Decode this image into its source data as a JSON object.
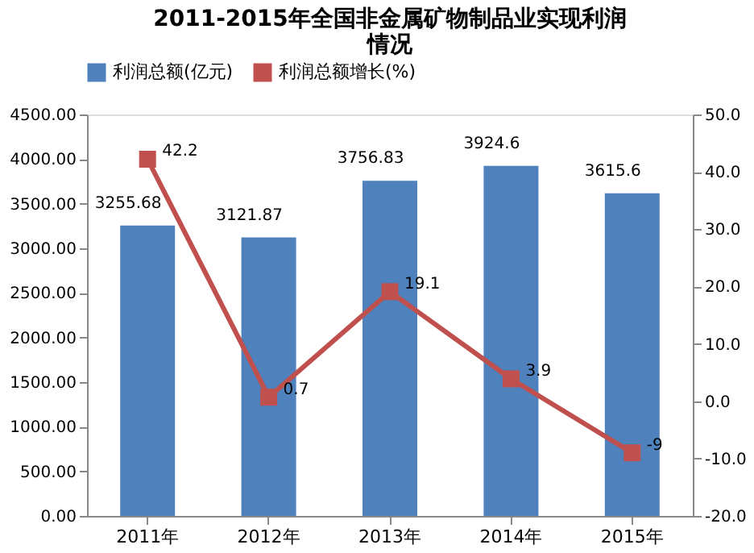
{
  "chart_data": {
    "type": "bar",
    "title": [
      "2011-2015年全国非金属矿物制品业实现利润",
      "情况"
    ],
    "categories": [
      "2011年",
      "2012年",
      "2013年",
      "2014年",
      "2015年"
    ],
    "series": [
      {
        "name": "利润总额(亿元)",
        "color": "#4f81bd",
        "values": [
          3255.68,
          3121.87,
          3756.83,
          3924.6,
          3615.6
        ],
        "value_labels": [
          "3255.68",
          "3121.87",
          "3756.83",
          "3924.6",
          "3615.6"
        ]
      },
      {
        "name": "利润总额增长(%)",
        "type": "line",
        "axis": "y2",
        "color": "#c0504d",
        "marker": "square",
        "values": [
          42.2,
          0.7,
          19.1,
          3.9,
          -9
        ],
        "value_labels": [
          "42.2",
          "0.7",
          "19.1",
          "3.9",
          "-9"
        ]
      }
    ],
    "ylim": [
      0,
      4500
    ],
    "yticks": [
      {
        "value": 0,
        "label": "0.00"
      },
      {
        "value": 500,
        "label": "500.00"
      },
      {
        "value": 1000,
        "label": "1000.00"
      },
      {
        "value": 1500,
        "label": "1500.00"
      },
      {
        "value": 2000,
        "label": "2000.00"
      },
      {
        "value": 2500,
        "label": "2500.00"
      },
      {
        "value": 3000,
        "label": "3000.00"
      },
      {
        "value": 3500,
        "label": "3500.00"
      },
      {
        "value": 4000,
        "label": "4000.00"
      },
      {
        "value": 4500,
        "label": "4500.00"
      }
    ],
    "y2lim": [
      -20,
      50
    ],
    "y2ticks": [
      {
        "value": -20,
        "label": "-20.0"
      },
      {
        "value": -10,
        "label": "-10.0"
      },
      {
        "value": 0,
        "label": "0.0"
      },
      {
        "value": 10,
        "label": "10.0"
      },
      {
        "value": 20,
        "label": "20.0"
      },
      {
        "value": 30,
        "label": "30.0"
      },
      {
        "value": 40,
        "label": "40.0"
      },
      {
        "value": 50,
        "label": "50.0"
      }
    ],
    "grid": false,
    "legend": "top"
  }
}
